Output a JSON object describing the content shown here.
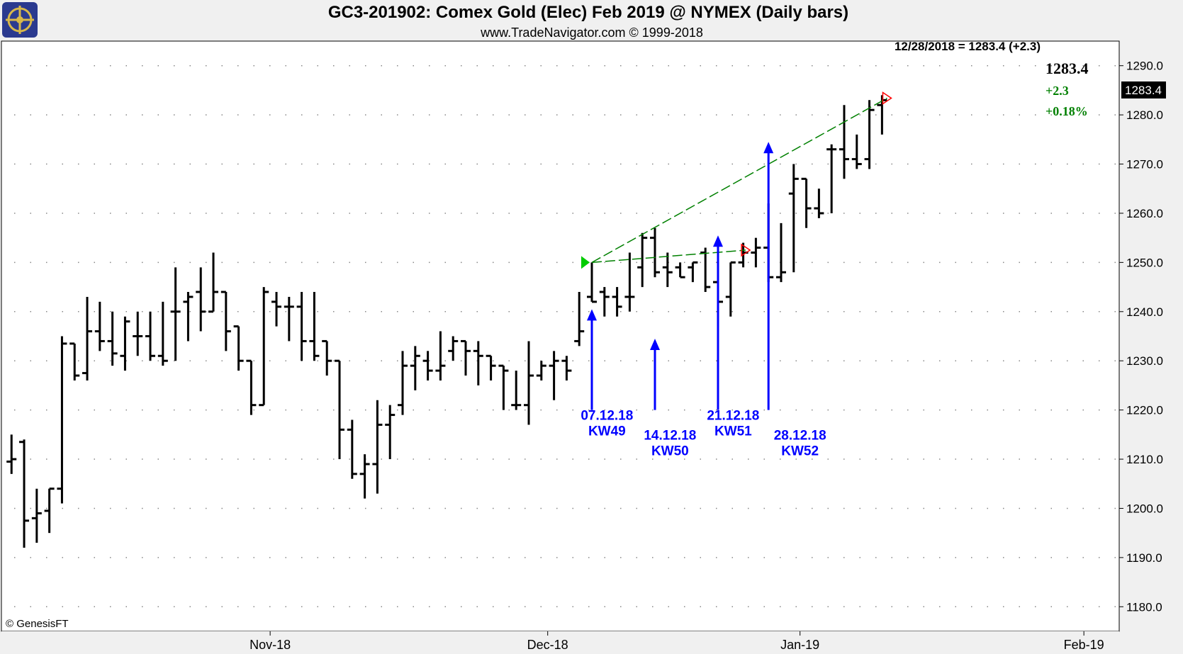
{
  "header": {
    "title": "GC3-201902:  Comex Gold (Elec) Feb 2019 @ NYMEX  (Daily bars)",
    "subtitle": "www.TradeNavigator.com © 1999-2018",
    "logo_icon": "ship-wheel-logo-icon"
  },
  "info_line": "12/28/2018 = 1283.4 (+2.3)",
  "last_price": {
    "value": "1283.4",
    "change": "+2.3",
    "change_pct": "+0.18%",
    "tag": "1283.4",
    "change_color": "#008000"
  },
  "copyright": "© GenesisFT",
  "colors": {
    "bars": "#000000",
    "annotation": "#0000ff",
    "trendline": "#008000",
    "entry_marker": "#00cc00",
    "exit_marker": "#ff0000",
    "background": "#ffffff",
    "frame": "#f0f0f0"
  },
  "chart_data": {
    "type": "ohlc",
    "ylim": [
      1175,
      1295
    ],
    "yticks": [
      "1180.0",
      "1190.0",
      "1200.0",
      "1210.0",
      "1220.0",
      "1230.0",
      "1240.0",
      "1250.0",
      "1260.0",
      "1270.0",
      "1280.0",
      "1290.0"
    ],
    "x_month_labels": [
      {
        "label": "Nov-18",
        "bar_index": 20.5
      },
      {
        "label": "Dec-18",
        "bar_index": 42.5
      },
      {
        "label": "Jan-19",
        "bar_index": 62.5
      },
      {
        "label": "Feb-19",
        "bar_index": 85
      }
    ],
    "x_range": [
      -0.8,
      87.8
    ],
    "bars": [
      {
        "o": 1209.5,
        "h": 1215.0,
        "l": 1207.0,
        "c": 1210.0
      },
      {
        "o": 1213.5,
        "h": 1214.0,
        "l": 1192.0,
        "c": 1197.5
      },
      {
        "o": 1198.0,
        "h": 1204.0,
        "l": 1193.0,
        "c": 1199.0
      },
      {
        "o": 1199.5,
        "h": 1204.0,
        "l": 1195.0,
        "c": 1204.0
      },
      {
        "o": 1204.0,
        "h": 1235.0,
        "l": 1201.0,
        "c": 1233.5
      },
      {
        "o": 1233.5,
        "h": 1233.5,
        "l": 1226.0,
        "c": 1227.0
      },
      {
        "o": 1227.5,
        "h": 1243.0,
        "l": 1226.0,
        "c": 1236.0
      },
      {
        "o": 1236.0,
        "h": 1242.0,
        "l": 1232.0,
        "c": 1234.0
      },
      {
        "o": 1234.0,
        "h": 1240.0,
        "l": 1229.0,
        "c": 1231.5
      },
      {
        "o": 1231.0,
        "h": 1239.0,
        "l": 1228.0,
        "c": 1238.0
      },
      {
        "o": 1235.0,
        "h": 1240.0,
        "l": 1231.0,
        "c": 1235.0
      },
      {
        "o": 1235.0,
        "h": 1240.0,
        "l": 1230.0,
        "c": 1231.0
      },
      {
        "o": 1231.0,
        "h": 1242.0,
        "l": 1229.0,
        "c": 1230.0
      },
      {
        "o": 1240.0,
        "h": 1249.0,
        "l": 1230.0,
        "c": 1240.0
      },
      {
        "o": 1242.0,
        "h": 1244.0,
        "l": 1234.0,
        "c": 1243.0
      },
      {
        "o": 1244.0,
        "h": 1249.0,
        "l": 1236.0,
        "c": 1240.0
      },
      {
        "o": 1240.0,
        "h": 1252.0,
        "l": 1240.0,
        "c": 1244.0
      },
      {
        "o": 1244.0,
        "h": 1244.0,
        "l": 1232.0,
        "c": 1236.0
      },
      {
        "o": 1237.0,
        "h": 1237.0,
        "l": 1228.0,
        "c": 1230.0
      },
      {
        "o": 1230.0,
        "h": 1230.0,
        "l": 1219.0,
        "c": 1221.0
      },
      {
        "o": 1221.0,
        "h": 1245.0,
        "l": 1221.0,
        "c": 1244.0
      },
      {
        "o": 1242.0,
        "h": 1244.0,
        "l": 1237.0,
        "c": 1241.0
      },
      {
        "o": 1241.0,
        "h": 1243.0,
        "l": 1234.0,
        "c": 1241.0
      },
      {
        "o": 1241.0,
        "h": 1244.0,
        "l": 1230.0,
        "c": 1234.0
      },
      {
        "o": 1234.0,
        "h": 1244.0,
        "l": 1230.0,
        "c": 1231.0
      },
      {
        "o": 1234.0,
        "h": 1234.0,
        "l": 1227.0,
        "c": 1230.0
      },
      {
        "o": 1230.0,
        "h": 1230.0,
        "l": 1210.0,
        "c": 1216.0
      },
      {
        "o": 1216.0,
        "h": 1218.0,
        "l": 1206.0,
        "c": 1207.0
      },
      {
        "o": 1207.0,
        "h": 1211.0,
        "l": 1202.0,
        "c": 1209.0
      },
      {
        "o": 1209.0,
        "h": 1222.0,
        "l": 1203.0,
        "c": 1217.0
      },
      {
        "o": 1217.0,
        "h": 1221.0,
        "l": 1210.0,
        "c": 1219.0
      },
      {
        "o": 1221.0,
        "h": 1232.0,
        "l": 1219.0,
        "c": 1229.0
      },
      {
        "o": 1229.0,
        "h": 1233.0,
        "l": 1224.0,
        "c": 1231.0
      },
      {
        "o": 1230.0,
        "h": 1232.0,
        "l": 1226.0,
        "c": 1228.0
      },
      {
        "o": 1228.0,
        "h": 1236.0,
        "l": 1226.0,
        "c": 1229.0
      },
      {
        "o": 1232.0,
        "h": 1235.0,
        "l": 1230.0,
        "c": 1234.0
      },
      {
        "o": 1234.0,
        "h": 1234.0,
        "l": 1227.0,
        "c": 1232.0
      },
      {
        "o": 1232.0,
        "h": 1234.0,
        "l": 1225.0,
        "c": 1231.0
      },
      {
        "o": 1231.0,
        "h": 1231.0,
        "l": 1226.0,
        "c": 1229.0
      },
      {
        "o": 1229.0,
        "h": 1229.0,
        "l": 1220.0,
        "c": 1228.0
      },
      {
        "o": 1221.0,
        "h": 1228.0,
        "l": 1220.0,
        "c": 1221.0
      },
      {
        "o": 1221.0,
        "h": 1234.0,
        "l": 1217.0,
        "c": 1227.0
      },
      {
        "o": 1227.0,
        "h": 1230.0,
        "l": 1226.0,
        "c": 1229.0
      },
      {
        "o": 1229.0,
        "h": 1232.0,
        "l": 1222.0,
        "c": 1230.0
      },
      {
        "o": 1230.0,
        "h": 1231.0,
        "l": 1226.0,
        "c": 1228.0
      },
      {
        "o": 1234.0,
        "h": 1244.0,
        "l": 1233.0,
        "c": 1236.0
      },
      {
        "o": 1243.0,
        "h": 1250.0,
        "l": 1242.0,
        "c": 1242.0
      },
      {
        "o": 1244.0,
        "h": 1245.0,
        "l": 1239.0,
        "c": 1243.0
      },
      {
        "o": 1243.0,
        "h": 1245.0,
        "l": 1239.0,
        "c": 1241.0
      },
      {
        "o": 1243.0,
        "h": 1252.0,
        "l": 1240.0,
        "c": 1243.0
      },
      {
        "o": 1249.0,
        "h": 1256.0,
        "l": 1245.0,
        "c": 1255.0
      },
      {
        "o": 1255.0,
        "h": 1257.0,
        "l": 1247.0,
        "c": 1248.0
      },
      {
        "o": 1249.0,
        "h": 1252.0,
        "l": 1245.0,
        "c": 1248.0
      },
      {
        "o": 1249.0,
        "h": 1250.0,
        "l": 1247.0,
        "c": 1247.0
      },
      {
        "o": 1249.0,
        "h": 1250.0,
        "l": 1246.0,
        "c": 1250.0
      },
      {
        "o": 1252.0,
        "h": 1253.0,
        "l": 1244.0,
        "c": 1245.0
      },
      {
        "o": 1246.0,
        "h": 1250.0,
        "l": 1237.0,
        "c": 1242.0
      },
      {
        "o": 1243.0,
        "h": 1250.0,
        "l": 1239.0,
        "c": 1250.0
      },
      {
        "o": 1250.0,
        "h": 1254.0,
        "l": 1249.0,
        "c": 1252.0
      },
      {
        "o": 1252.0,
        "h": 1255.0,
        "l": 1249.0,
        "c": 1253.0
      },
      {
        "o": 1253.0,
        "h": 1262.0,
        "l": 1246.0,
        "c": 1247.0
      },
      {
        "o": 1247.0,
        "h": 1258.0,
        "l": 1246.0,
        "c": 1248.0
      },
      {
        "o": 1264.0,
        "h": 1270.0,
        "l": 1248.0,
        "c": 1267.0
      },
      {
        "o": 1267.0,
        "h": 1267.0,
        "l": 1257.0,
        "c": 1261.0
      },
      {
        "o": 1261.0,
        "h": 1265.0,
        "l": 1259.0,
        "c": 1260.0
      },
      {
        "o": 1273.0,
        "h": 1274.0,
        "l": 1260.0,
        "c": 1273.0
      },
      {
        "o": 1273.0,
        "h": 1282.0,
        "l": 1267.0,
        "c": 1271.0
      },
      {
        "o": 1271.0,
        "h": 1276.0,
        "l": 1269.0,
        "c": 1270.0
      },
      {
        "o": 1271.0,
        "h": 1283.0,
        "l": 1269.0,
        "c": 1281.0
      },
      {
        "o": 1282.0,
        "h": 1284.0,
        "l": 1276.0,
        "c": 1283.0
      }
    ],
    "trades": [
      {
        "entry_bar": 46,
        "entry_price": 1250.0,
        "exit_bar": 58.2,
        "exit_price": 1252.5
      },
      {
        "entry_bar": 46,
        "entry_price": 1250.0,
        "exit_bar": 69.4,
        "exit_price": 1283.4
      }
    ],
    "annotations": [
      {
        "bar_index": 46,
        "tip": 1240.5,
        "base": 1220.0,
        "line1": "07.12.18",
        "line2": "KW49",
        "label_bar": 47.2,
        "label_price": 1218.0
      },
      {
        "bar_index": 51,
        "tip": 1234.5,
        "base": 1220.0,
        "line1": "14.12.18",
        "line2": "KW50",
        "label_bar": 52.2,
        "label_price": 1214.0
      },
      {
        "bar_index": 56,
        "tip": 1255.5,
        "base": 1220.0,
        "line1": "21.12.18",
        "line2": "KW51",
        "label_bar": 57.2,
        "label_price": 1218.0
      },
      {
        "bar_index": 60,
        "tip": 1274.5,
        "base": 1220.0,
        "line1": "28.12.18",
        "line2": "KW52",
        "label_bar": 62.5,
        "label_price": 1214.0
      }
    ]
  }
}
